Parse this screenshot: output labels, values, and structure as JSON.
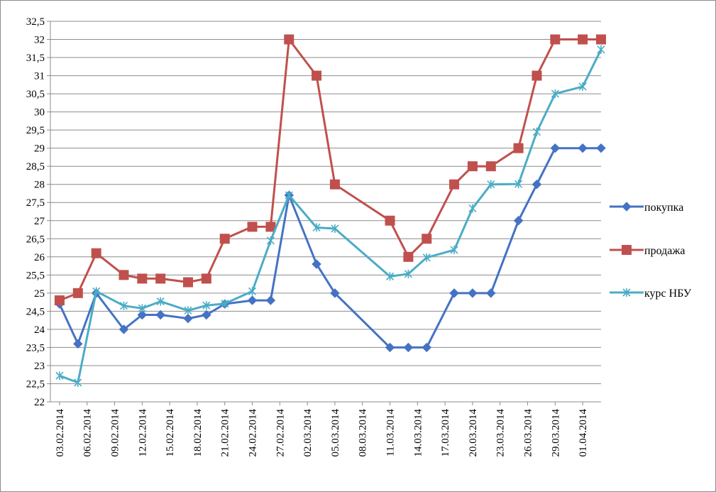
{
  "chart_data": {
    "type": "line",
    "title": "",
    "xlabel": "",
    "ylabel": "",
    "ylim": [
      22,
      32.5
    ],
    "ytick_step": 0.5,
    "ytick_labels": [
      "22",
      "22,5",
      "23",
      "23,5",
      "24",
      "24,5",
      "25",
      "25,5",
      "26",
      "26,5",
      "27",
      "27,5",
      "28",
      "28,5",
      "29",
      "29,5",
      "30",
      "30,5",
      "31",
      "31,5",
      "32",
      "32,5"
    ],
    "x_axis_type": "date",
    "x_range": [
      "2014-02-02",
      "2014-04-03"
    ],
    "xtick_labels": [
      {
        "date": "2014-02-03",
        "label": "03.02.2014"
      },
      {
        "date": "2014-02-06",
        "label": "06.02.2014"
      },
      {
        "date": "2014-02-09",
        "label": "09.02.2014"
      },
      {
        "date": "2014-02-12",
        "label": "12.02.2014"
      },
      {
        "date": "2014-02-15",
        "label": "15.02.2014"
      },
      {
        "date": "2014-02-18",
        "label": "18.02.2014"
      },
      {
        "date": "2014-02-21",
        "label": "21.02.2014"
      },
      {
        "date": "2014-02-24",
        "label": "24.02.2014"
      },
      {
        "date": "2014-02-27",
        "label": "27.02.2014"
      },
      {
        "date": "2014-03-02",
        "label": "02.03.2014"
      },
      {
        "date": "2014-03-05",
        "label": "05.03.2014"
      },
      {
        "date": "2014-03-08",
        "label": "08.03.2014"
      },
      {
        "date": "2014-03-11",
        "label": "11.03.2014"
      },
      {
        "date": "2014-03-14",
        "label": "14.03.2014"
      },
      {
        "date": "2014-03-17",
        "label": "17.03.2014"
      },
      {
        "date": "2014-03-20",
        "label": "20.03.2014"
      },
      {
        "date": "2014-03-23",
        "label": "23.03.2014"
      },
      {
        "date": "2014-03-26",
        "label": "26.03.2014"
      },
      {
        "date": "2014-03-29",
        "label": "29.03.2014"
      },
      {
        "date": "2014-04-01",
        "label": "01.04.2014"
      }
    ],
    "grid": true,
    "legend_position": "right",
    "series": [
      {
        "name": "покупка",
        "color": "#4472c4",
        "marker": "diamond",
        "points": [
          [
            "2014-02-03",
            24.7
          ],
          [
            "2014-02-05",
            23.6
          ],
          [
            "2014-02-07",
            25.0
          ],
          [
            "2014-02-10",
            24.0
          ],
          [
            "2014-02-12",
            24.4
          ],
          [
            "2014-02-14",
            24.4
          ],
          [
            "2014-02-17",
            24.3
          ],
          [
            "2014-02-19",
            24.4
          ],
          [
            "2014-02-21",
            24.7
          ],
          [
            "2014-02-24",
            24.8
          ],
          [
            "2014-02-26",
            24.8
          ],
          [
            "2014-02-28",
            27.7
          ],
          [
            "2014-03-03",
            25.8
          ],
          [
            "2014-03-05",
            25.0
          ],
          [
            "2014-03-11",
            23.5
          ],
          [
            "2014-03-13",
            23.5
          ],
          [
            "2014-03-15",
            23.5
          ],
          [
            "2014-03-18",
            25.0
          ],
          [
            "2014-03-20",
            25.0
          ],
          [
            "2014-03-22",
            25.0
          ],
          [
            "2014-03-25",
            27.0
          ],
          [
            "2014-03-27",
            28.0
          ],
          [
            "2014-03-29",
            29.0
          ],
          [
            "2014-04-01",
            29.0
          ],
          [
            "2014-04-03",
            29.0
          ]
        ]
      },
      {
        "name": "продажа",
        "color": "#c0504d",
        "marker": "square",
        "points": [
          [
            "2014-02-03",
            24.8
          ],
          [
            "2014-02-05",
            25.0
          ],
          [
            "2014-02-07",
            26.1
          ],
          [
            "2014-02-10",
            25.5
          ],
          [
            "2014-02-12",
            25.4
          ],
          [
            "2014-02-14",
            25.4
          ],
          [
            "2014-02-17",
            25.3
          ],
          [
            "2014-02-19",
            25.4
          ],
          [
            "2014-02-21",
            26.5
          ],
          [
            "2014-02-24",
            26.83
          ],
          [
            "2014-02-26",
            26.83
          ],
          [
            "2014-02-28",
            32.0
          ],
          [
            "2014-03-03",
            31.0
          ],
          [
            "2014-03-05",
            28.0
          ],
          [
            "2014-03-11",
            27.0
          ],
          [
            "2014-03-13",
            26.0
          ],
          [
            "2014-03-15",
            26.5
          ],
          [
            "2014-03-18",
            28.0
          ],
          [
            "2014-03-20",
            28.5
          ],
          [
            "2014-03-22",
            28.5
          ],
          [
            "2014-03-25",
            29.0
          ],
          [
            "2014-03-27",
            31.0
          ],
          [
            "2014-03-29",
            32.0
          ],
          [
            "2014-04-01",
            32.0
          ],
          [
            "2014-04-03",
            32.0
          ]
        ]
      },
      {
        "name": "курс НБУ",
        "color": "#4bacc6",
        "marker": "star",
        "points": [
          [
            "2014-02-03",
            22.72
          ],
          [
            "2014-02-05",
            22.53
          ],
          [
            "2014-02-07",
            25.05
          ],
          [
            "2014-02-10",
            24.65
          ],
          [
            "2014-02-12",
            24.58
          ],
          [
            "2014-02-14",
            24.77
          ],
          [
            "2014-02-17",
            24.52
          ],
          [
            "2014-02-19",
            24.66
          ],
          [
            "2014-02-21",
            24.71
          ],
          [
            "2014-02-24",
            25.05
          ],
          [
            "2014-02-26",
            26.45
          ],
          [
            "2014-02-28",
            27.7
          ],
          [
            "2014-03-03",
            26.81
          ],
          [
            "2014-03-05",
            26.78
          ],
          [
            "2014-03-11",
            25.46
          ],
          [
            "2014-03-13",
            25.53
          ],
          [
            "2014-03-15",
            25.98
          ],
          [
            "2014-03-18",
            26.19
          ],
          [
            "2014-03-20",
            27.34
          ],
          [
            "2014-03-22",
            28.0
          ],
          [
            "2014-03-25",
            28.01
          ],
          [
            "2014-03-27",
            29.45
          ],
          [
            "2014-03-29",
            30.5
          ],
          [
            "2014-04-01",
            30.7
          ],
          [
            "2014-04-03",
            31.72
          ]
        ]
      }
    ]
  }
}
